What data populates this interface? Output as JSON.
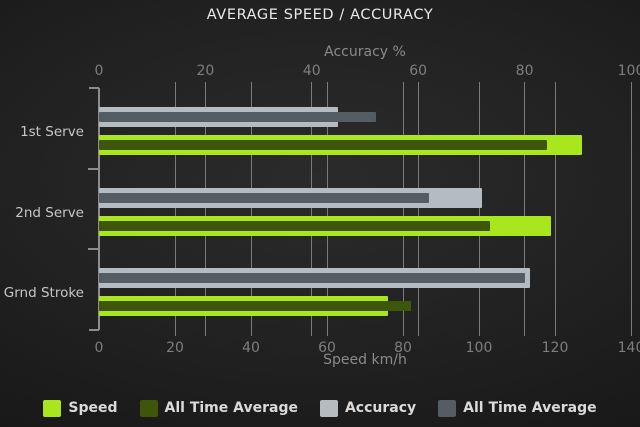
{
  "title": "AVERAGE SPEED / ACCURACY",
  "chart_data": {
    "type": "bar",
    "orientation": "horizontal",
    "title": "AVERAGE SPEED / ACCURACY",
    "categories": [
      "1st Serve",
      "2nd Serve",
      "Grnd Stroke"
    ],
    "top_axis": {
      "label": "Accuracy %",
      "min": 0,
      "max": 100,
      "ticks": [
        0,
        20,
        40,
        60,
        80,
        100
      ]
    },
    "bottom_axis": {
      "label": "Speed km/h",
      "min": 0,
      "max": 140,
      "ticks": [
        0,
        20,
        40,
        60,
        80,
        100,
        120,
        140
      ]
    },
    "grid": true,
    "legend_position": "bottom",
    "series": [
      {
        "name": "Speed",
        "axis": "bottom",
        "role": "main",
        "color": "#aae61e",
        "values": [
          127,
          119,
          76
        ]
      },
      {
        "name": "All Time Average",
        "axis": "bottom",
        "role": "overlay",
        "color": "#3e560a",
        "values": [
          118,
          103,
          82
        ]
      },
      {
        "name": "Accuracy",
        "axis": "top",
        "role": "main",
        "color": "#b5bcc1",
        "values": [
          45,
          72,
          81
        ]
      },
      {
        "name": "All Time Average",
        "axis": "top",
        "role": "overlay",
        "color": "#545c64",
        "values": [
          52,
          62,
          80
        ]
      }
    ],
    "legend": [
      "Speed",
      "All Time Average",
      "Accuracy",
      "All Time Average"
    ]
  }
}
